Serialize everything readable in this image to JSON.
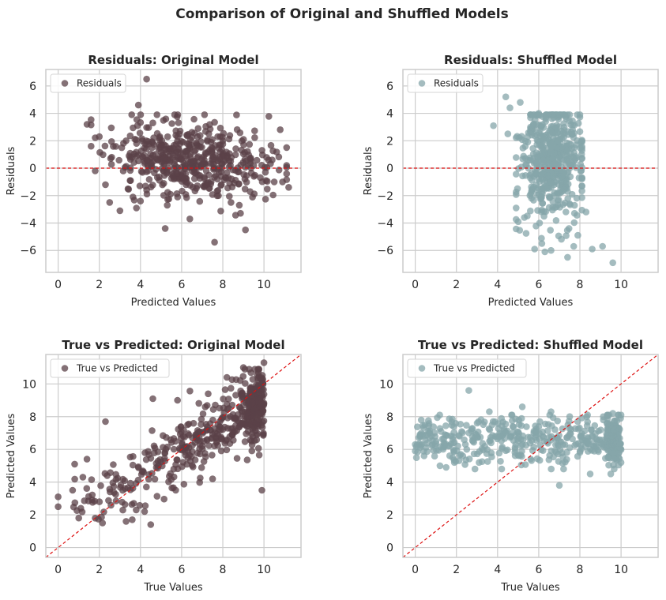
{
  "figure_title": "Comparison of Original and Shuffled Models",
  "colors": {
    "original": "#5b4148",
    "shuffled": "#86a6aa",
    "ref_line": "#dd1111",
    "grid": "#cccccc",
    "frame": "#cccccc"
  },
  "chart_data": [
    {
      "type": "scatter",
      "title": "Residuals: Original Model",
      "xlabel": "Predicted Values",
      "ylabel": "Residuals",
      "xlim": [
        -0.6,
        11.8
      ],
      "ylim": [
        -7.6,
        7.2
      ],
      "xticks": [
        0,
        2,
        4,
        6,
        8,
        10
      ],
      "yticks": [
        -6,
        -4,
        -2,
        0,
        2,
        4,
        6
      ],
      "grid": true,
      "legend": {
        "position": "upper-left",
        "label": "Residuals"
      },
      "reference_line": {
        "kind": "horizontal",
        "y": 0,
        "style": "dashed"
      },
      "series_color": "original",
      "sample": {
        "n": 500,
        "seed": 11,
        "x_range": [
          1.3,
          11.3
        ]
      },
      "points": [
        [
          1.4,
          3.2
        ],
        [
          1.6,
          1.6
        ],
        [
          1.8,
          -0.2
        ],
        [
          2.0,
          2.3
        ],
        [
          2.3,
          -1.2
        ],
        [
          2.5,
          -2.5
        ],
        [
          3.0,
          -3.1
        ],
        [
          3.3,
          2.0
        ],
        [
          3.6,
          0.8
        ],
        [
          3.9,
          4.6
        ],
        [
          4.0,
          -2.4
        ],
        [
          4.3,
          -1.6
        ],
        [
          4.3,
          6.5
        ],
        [
          4.6,
          3.3
        ],
        [
          4.8,
          3.9
        ],
        [
          5.2,
          -4.4
        ],
        [
          5.3,
          -2.7
        ],
        [
          5.8,
          2.3
        ],
        [
          6.4,
          -3.7
        ],
        [
          6.8,
          2.9
        ],
        [
          7.1,
          0.6
        ],
        [
          7.6,
          -5.4
        ],
        [
          8.0,
          2.0
        ],
        [
          8.4,
          -2.5
        ],
        [
          8.8,
          -2.7
        ],
        [
          9.1,
          -4.5
        ],
        [
          9.5,
          0.2
        ],
        [
          10.1,
          -0.9
        ],
        [
          10.4,
          0.6
        ],
        [
          10.5,
          -1.0
        ],
        [
          10.9,
          -1.0
        ],
        [
          11.2,
          -1.4
        ]
      ]
    },
    {
      "type": "scatter",
      "title": "Residuals: Shuffled Model",
      "xlabel": "Predicted Values",
      "ylabel": "Residuals",
      "xlim": [
        -0.6,
        11.8
      ],
      "ylim": [
        -7.6,
        7.2
      ],
      "xticks": [
        0,
        2,
        4,
        6,
        8,
        10
      ],
      "yticks": [
        -6,
        -4,
        -2,
        0,
        2,
        4,
        6
      ],
      "grid": true,
      "legend": {
        "position": "upper-left",
        "label": "Residuals"
      },
      "reference_line": {
        "kind": "horizontal",
        "y": 0,
        "style": "dashed"
      },
      "series_color": "shuffled",
      "sample": {
        "n": 500,
        "seed": 23,
        "x_range": [
          3.7,
          9.6
        ]
      },
      "points": [
        [
          3.8,
          3.1
        ],
        [
          4.4,
          5.2
        ],
        [
          4.5,
          2.5
        ],
        [
          4.6,
          4.4
        ],
        [
          5.0,
          -3.9
        ],
        [
          5.1,
          4.8
        ],
        [
          5.3,
          -3.6
        ],
        [
          5.8,
          -5.9
        ],
        [
          6.0,
          4.0
        ],
        [
          6.3,
          -6.1
        ],
        [
          6.6,
          -6.0
        ],
        [
          7.4,
          -6.5
        ],
        [
          7.7,
          -5.7
        ],
        [
          7.9,
          -4.9
        ],
        [
          8.3,
          -3.2
        ],
        [
          8.6,
          -5.9
        ],
        [
          9.1,
          -5.7
        ],
        [
          9.6,
          -6.9
        ]
      ]
    },
    {
      "type": "scatter",
      "title": "True vs Predicted: Original Model",
      "xlabel": "True Values",
      "ylabel": "Predicted Values",
      "xlim": [
        -0.6,
        11.8
      ],
      "ylim": [
        -0.6,
        11.8
      ],
      "xticks": [
        0,
        2,
        4,
        6,
        8,
        10
      ],
      "yticks": [
        0,
        2,
        4,
        6,
        8,
        10
      ],
      "grid": true,
      "legend": {
        "position": "upper-left",
        "label": "True vs Predicted"
      },
      "reference_line": {
        "kind": "diagonal",
        "style": "dashed"
      },
      "series_color": "original",
      "sample": {
        "n": 500,
        "seed": 37,
        "x_range": [
          0,
          10
        ]
      },
      "points": [
        [
          0.0,
          3.1
        ],
        [
          0.0,
          2.5
        ],
        [
          0.7,
          3.5
        ],
        [
          0.8,
          5.1
        ],
        [
          1.1,
          2.4
        ],
        [
          1.2,
          4.3
        ],
        [
          1.4,
          5.4
        ],
        [
          1.8,
          1.8
        ],
        [
          2.3,
          7.7
        ],
        [
          3.3,
          1.6
        ],
        [
          3.6,
          1.7
        ],
        [
          4.2,
          2.2
        ],
        [
          4.5,
          1.4
        ],
        [
          4.6,
          9.1
        ],
        [
          5.8,
          9.0
        ],
        [
          8.2,
          10.4
        ],
        [
          9.0,
          11.0
        ],
        [
          9.9,
          3.5
        ],
        [
          10.0,
          11.3
        ]
      ]
    },
    {
      "type": "scatter",
      "title": "True vs Predicted: Shuffled Model",
      "xlabel": "True Values",
      "ylabel": "Predicted Values",
      "xlim": [
        -0.6,
        11.8
      ],
      "ylim": [
        -0.6,
        11.8
      ],
      "xticks": [
        0,
        2,
        4,
        6,
        8,
        10
      ],
      "yticks": [
        0,
        2,
        4,
        6,
        8,
        10
      ],
      "grid": true,
      "legend": {
        "position": "upper-left",
        "label": "True vs Predicted"
      },
      "reference_line": {
        "kind": "diagonal",
        "style": "dashed"
      },
      "series_color": "shuffled",
      "sample": {
        "n": 500,
        "seed": 53,
        "x_range": [
          0,
          10
        ]
      },
      "points": [
        [
          0.0,
          6.3
        ],
        [
          0.0,
          5.9
        ],
        [
          0.7,
          6.7
        ],
        [
          0.7,
          7.0
        ],
        [
          1.2,
          5.0
        ],
        [
          1.5,
          4.9
        ],
        [
          1.9,
          5.2
        ],
        [
          2.6,
          9.6
        ],
        [
          2.9,
          4.8
        ],
        [
          3.1,
          5.2
        ],
        [
          3.6,
          8.3
        ],
        [
          4.2,
          4.8
        ],
        [
          4.7,
          8.1
        ],
        [
          5.2,
          8.6
        ],
        [
          6.6,
          8.3
        ],
        [
          7.0,
          3.8
        ],
        [
          8.5,
          4.5
        ],
        [
          9.5,
          4.5
        ],
        [
          9.6,
          8.2
        ],
        [
          10.0,
          5.2
        ],
        [
          10.0,
          8.1
        ]
      ]
    }
  ]
}
